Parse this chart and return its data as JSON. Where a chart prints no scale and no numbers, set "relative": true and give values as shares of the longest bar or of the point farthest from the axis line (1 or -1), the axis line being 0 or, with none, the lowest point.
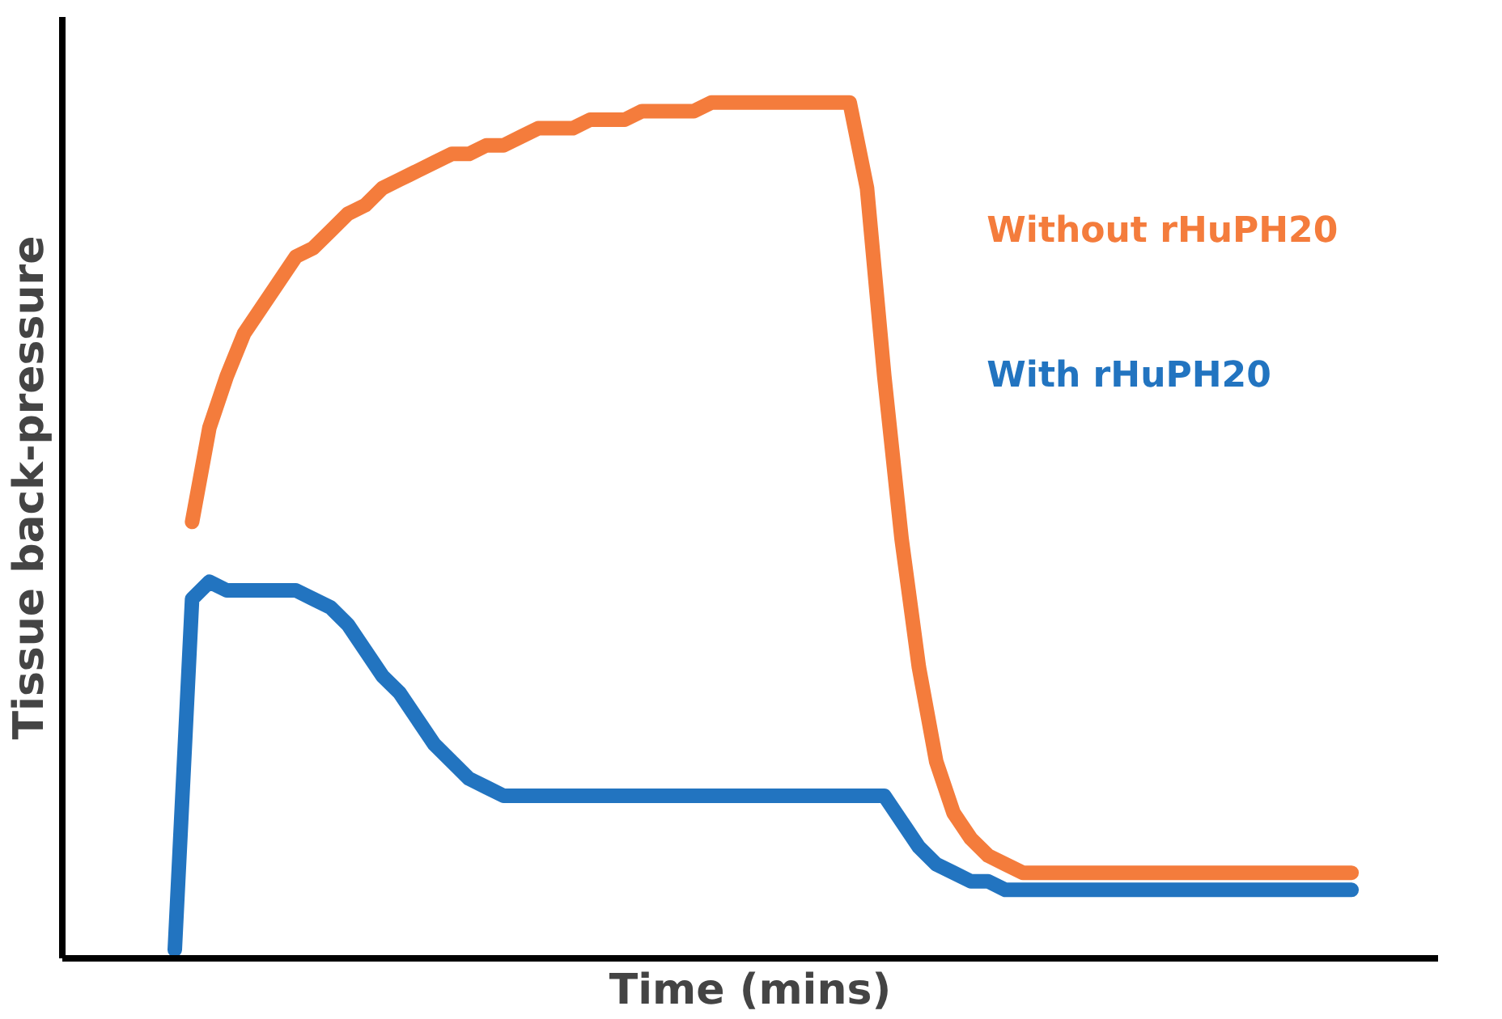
{
  "chart_data": {
    "type": "line",
    "relative": true,
    "xlabel": "Time (mins)",
    "ylabel": "Tissue back-pressure",
    "categories": [
      null,
      null,
      null,
      null,
      null,
      null,
      null,
      null,
      null,
      null,
      null,
      null,
      null,
      null,
      null,
      null,
      null,
      null,
      null,
      null,
      null,
      null,
      null,
      null,
      null,
      null,
      null,
      null,
      null,
      null,
      null,
      null,
      null,
      null,
      null,
      null,
      null,
      null,
      null,
      null,
      null,
      null,
      null,
      null,
      null,
      null,
      null,
      null,
      null,
      null,
      null,
      null,
      null,
      null,
      null,
      null,
      null,
      null,
      null,
      null,
      null,
      null,
      null,
      null,
      null,
      null,
      null,
      null,
      null
    ],
    "series": [
      {
        "name": "Without rHuPH20",
        "color": "#f47c3c",
        "values": [
          null,
          0.51,
          0.62,
          0.68,
          0.73,
          0.76,
          0.79,
          0.82,
          0.83,
          0.85,
          0.87,
          0.88,
          0.9,
          0.91,
          0.92,
          0.93,
          0.94,
          0.94,
          0.95,
          0.95,
          0.96,
          0.97,
          0.97,
          0.97,
          0.98,
          0.98,
          0.98,
          0.99,
          0.99,
          0.99,
          0.99,
          1,
          1,
          1,
          1,
          1,
          1,
          1,
          1,
          1,
          0.9,
          0.68,
          0.49,
          0.34,
          0.23,
          0.17,
          0.14,
          0.12,
          0.11,
          0.1,
          0.1,
          0.1,
          0.1,
          0.1,
          0.1,
          0.1,
          0.1,
          0.1,
          0.1,
          0.1,
          0.1,
          0.1,
          0.1,
          0.1,
          0.1,
          0.1,
          0.1,
          0.1,
          0.1
        ]
      },
      {
        "name": "With rHuPH20",
        "color": "#2274c0",
        "values": [
          0.01,
          0.42,
          0.44,
          0.43,
          0.43,
          0.43,
          0.43,
          0.43,
          0.42,
          0.41,
          0.39,
          0.36,
          0.33,
          0.31,
          0.28,
          0.25,
          0.23,
          0.21,
          0.2,
          0.19,
          0.19,
          0.19,
          0.19,
          0.19,
          0.19,
          0.19,
          0.19,
          0.19,
          0.19,
          0.19,
          0.19,
          0.19,
          0.19,
          0.19,
          0.19,
          0.19,
          0.19,
          0.19,
          0.19,
          0.19,
          0.19,
          0.19,
          0.16,
          0.13,
          0.11,
          0.1,
          0.09,
          0.09,
          0.08,
          0.08,
          0.08,
          0.08,
          0.08,
          0.08,
          0.08,
          0.08,
          0.08,
          0.08,
          0.08,
          0.08,
          0.08,
          0.08,
          0.08,
          0.08,
          0.08,
          0.08,
          0.08,
          0.08,
          0.08
        ]
      }
    ],
    "line_style": "solid"
  }
}
